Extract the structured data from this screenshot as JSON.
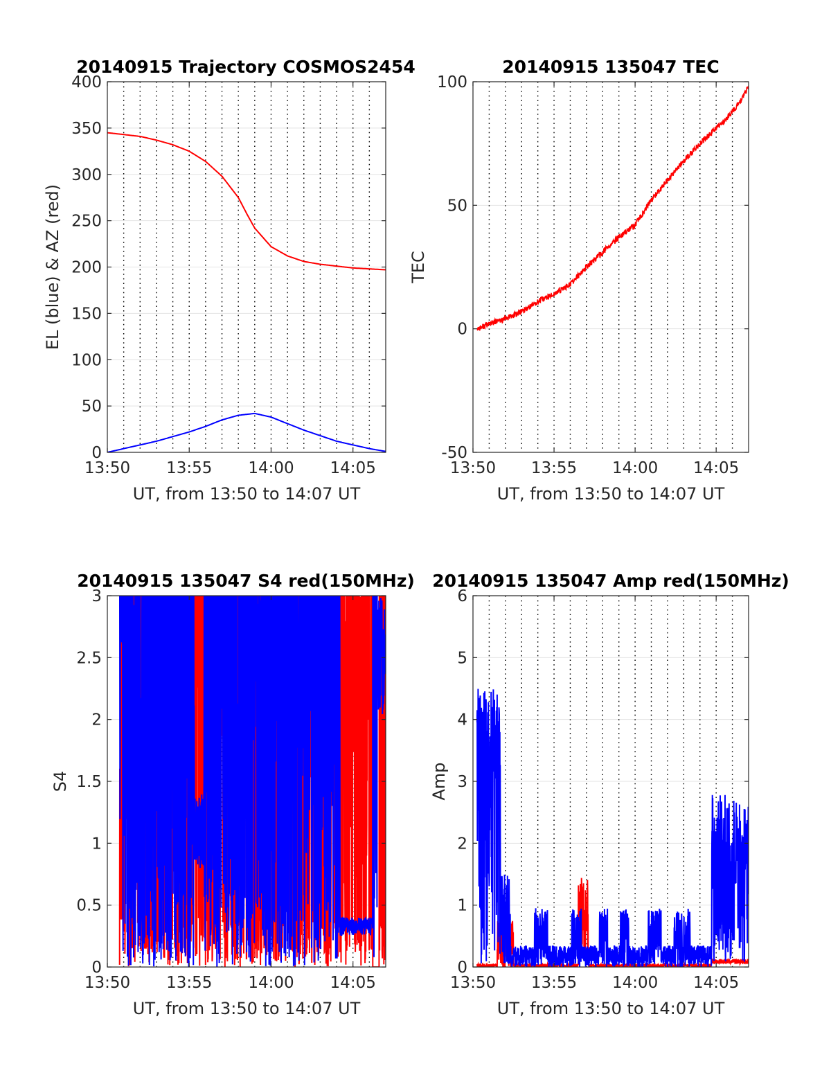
{
  "chart_data": [
    {
      "type": "line",
      "title": "20140915 Trajectory COSMOS2454",
      "xlabel": "UT, from 13:50 to 14:07 UT",
      "ylabel": "EL (blue) & AZ (red)",
      "x_tick_labels": [
        "13:50",
        "13:55",
        "14:00",
        "14:05"
      ],
      "y_ticks": [
        0,
        50,
        100,
        150,
        200,
        250,
        300,
        350,
        400
      ],
      "xlim": [
        "13:50",
        "14:07"
      ],
      "ylim": [
        0,
        400
      ],
      "grid": "vertical dotted every minute, horizontal light",
      "series": [
        {
          "color": "#ff0000",
          "x": [
            "13:50",
            "13:51",
            "13:52",
            "13:53",
            "13:54",
            "13:55",
            "13:56",
            "13:57",
            "13:58",
            "13:58:30",
            "13:59",
            "14:00",
            "14:01",
            "14:02",
            "14:03",
            "14:04",
            "14:05",
            "14:06",
            "14:07"
          ],
          "values": [
            345,
            343,
            341,
            337,
            332,
            325,
            314,
            298,
            275,
            258,
            242,
            222,
            212,
            206,
            203,
            201,
            199,
            198,
            197
          ]
        },
        {
          "color": "#0000ff",
          "x": [
            "13:50",
            "13:51",
            "13:52",
            "13:53",
            "13:54",
            "13:55",
            "13:56",
            "13:57",
            "13:58",
            "13:59",
            "14:00",
            "14:01",
            "14:02",
            "14:03",
            "14:04",
            "14:05",
            "14:06",
            "14:07"
          ],
          "values": [
            0,
            4,
            8,
            12,
            17,
            22,
            28,
            35,
            40,
            42,
            38,
            31,
            24,
            18,
            12,
            8,
            4,
            1
          ]
        }
      ]
    },
    {
      "type": "line",
      "title": "20140915 135047 TEC",
      "xlabel": "UT, from 13:50 to 14:07 UT",
      "ylabel": "TEC",
      "x_tick_labels": [
        "13:50",
        "13:55",
        "14:00",
        "14:05"
      ],
      "y_ticks": [
        -50,
        0,
        50,
        100
      ],
      "xlim": [
        "13:50",
        "14:07"
      ],
      "ylim": [
        -50,
        100
      ],
      "series": [
        {
          "color": "#ff0000",
          "x": [
            "13:50:15",
            "13:51",
            "13:52",
            "13:53",
            "13:54",
            "13:55",
            "13:56",
            "13:57",
            "13:58",
            "13:59",
            "14:00",
            "14:01",
            "14:02",
            "14:03",
            "14:04",
            "14:05",
            "14:05:30",
            "14:06",
            "14:06:30",
            "14:07"
          ],
          "values": [
            0,
            2,
            4,
            7,
            11,
            14,
            18,
            25,
            31,
            37,
            42,
            52,
            60,
            68,
            75,
            81,
            84,
            88,
            92,
            98
          ]
        }
      ]
    },
    {
      "type": "line",
      "title": "20140915 135047 S4 red(150MHz)",
      "xlabel": "UT, from 13:50 to 14:07 UT",
      "ylabel": "S4",
      "x_tick_labels": [
        "13:50",
        "13:55",
        "14:00",
        "14:05"
      ],
      "y_ticks": [
        0,
        0.5,
        1,
        1.5,
        2,
        2.5,
        3
      ],
      "xlim": [
        "13:50",
        "14:07"
      ],
      "ylim": [
        0,
        3
      ],
      "series": [
        {
          "color": "#ff0000",
          "range": [
            0,
            3
          ]
        },
        {
          "color": "#0000ff",
          "range": [
            0,
            3
          ]
        }
      ]
    },
    {
      "type": "line",
      "title": "20140915 135047 Amp red(150MHz)",
      "xlabel": "UT, from 13:50 to 14:07 UT",
      "ylabel": "Amp",
      "x_tick_labels": [
        "13:50",
        "13:55",
        "14:00",
        "14:05"
      ],
      "y_ticks": [
        0,
        1,
        2,
        3,
        4,
        5,
        6
      ],
      "xlim": [
        "13:50",
        "14:07"
      ],
      "ylim": [
        0,
        6
      ],
      "series": [
        {
          "color": "#ff0000",
          "peak": 1.45,
          "peak_time": "13:57"
        },
        {
          "color": "#0000ff",
          "peak": 4.5,
          "peak_time": "13:52"
        }
      ]
    }
  ]
}
